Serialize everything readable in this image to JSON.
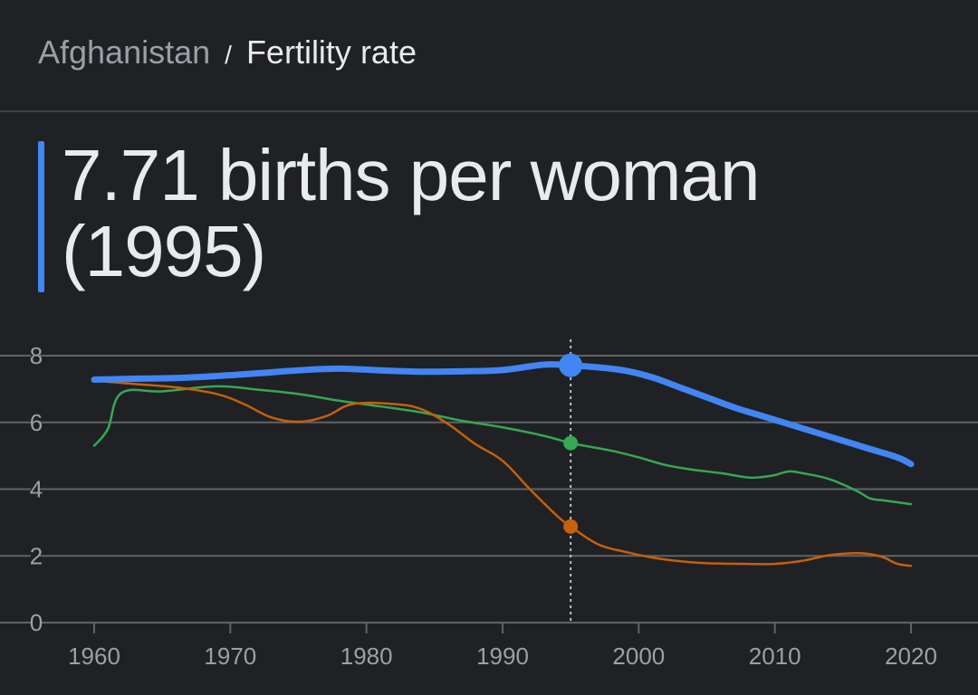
{
  "breadcrumb": {
    "country": "Afghanistan",
    "separator": "/",
    "metric": "Fertility rate"
  },
  "headline": {
    "value": "7.71 births per woman",
    "year": "(1995)"
  },
  "colors": {
    "background": "#202124",
    "accent": "#4285f4",
    "gridline": "#5f6368",
    "series_blue": "#4285f4",
    "series_green": "#34a853",
    "series_orange": "#c5600c"
  },
  "chart_data": {
    "type": "line",
    "title": "",
    "xlabel": "",
    "ylabel": "",
    "xlim": [
      1960,
      2020
    ],
    "ylim": [
      0,
      8
    ],
    "x_ticks": [
      "1960",
      "1970",
      "1980",
      "1990",
      "2000",
      "2010",
      "2020"
    ],
    "y_ticks": [
      "0",
      "2",
      "4",
      "6",
      "8"
    ],
    "grid": true,
    "highlight_x": 1995,
    "series": [
      {
        "color": "#4285f4",
        "emphasis": "primary",
        "x": [
          1960,
          1963,
          1966,
          1969,
          1972,
          1975,
          1978,
          1981,
          1984,
          1987,
          1990,
          1993,
          1995,
          1997,
          1999,
          2001,
          2003,
          2005,
          2007,
          2009,
          2011,
          2013,
          2015,
          2017,
          2019,
          2020
        ],
        "values": [
          7.28,
          7.31,
          7.33,
          7.39,
          7.47,
          7.56,
          7.61,
          7.56,
          7.52,
          7.53,
          7.57,
          7.73,
          7.71,
          7.65,
          7.55,
          7.35,
          7.05,
          6.75,
          6.45,
          6.2,
          5.95,
          5.7,
          5.45,
          5.2,
          4.95,
          4.75
        ]
      },
      {
        "color": "#34a853",
        "emphasis": "secondary",
        "x": [
          1960,
          1961,
          1962,
          1965,
          1969,
          1972,
          1975,
          1978,
          1981,
          1984,
          1987,
          1990,
          1993,
          1995,
          1996,
          1998,
          2000,
          2002,
          2004,
          2006,
          2008,
          2009,
          2010,
          2011,
          2012,
          2014,
          2016,
          2017,
          2018,
          2020
        ],
        "values": [
          5.3,
          5.8,
          6.88,
          6.93,
          7.08,
          6.98,
          6.85,
          6.65,
          6.48,
          6.3,
          6.05,
          5.85,
          5.6,
          5.38,
          5.3,
          5.15,
          4.95,
          4.72,
          4.58,
          4.48,
          4.35,
          4.36,
          4.42,
          4.53,
          4.48,
          4.3,
          3.95,
          3.72,
          3.66,
          3.55
        ]
      },
      {
        "color": "#c5600c",
        "emphasis": "secondary",
        "x": [
          1960,
          1963,
          1966,
          1969,
          1971,
          1973,
          1975,
          1977,
          1979,
          1982,
          1984,
          1986,
          1988,
          1990,
          1992,
          1994,
          1995,
          1997,
          1999,
          2001,
          2003,
          2005,
          2008,
          2010,
          2012,
          2014,
          2016,
          2017,
          2018,
          2019,
          2020
        ],
        "values": [
          7.25,
          7.15,
          7.05,
          6.85,
          6.55,
          6.15,
          6.02,
          6.18,
          6.55,
          6.55,
          6.4,
          5.95,
          5.35,
          4.85,
          4.0,
          3.2,
          2.88,
          2.35,
          2.12,
          1.95,
          1.84,
          1.78,
          1.76,
          1.76,
          1.85,
          2.02,
          2.08,
          2.05,
          1.95,
          1.76,
          1.7
        ]
      }
    ]
  }
}
